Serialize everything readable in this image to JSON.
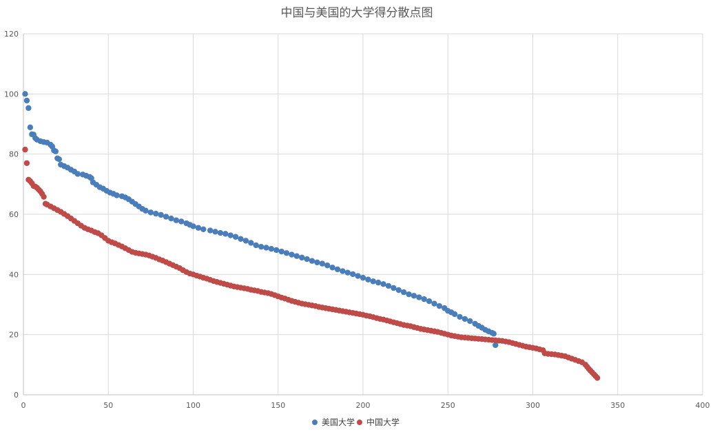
{
  "chart_data": {
    "type": "scatter",
    "title": "中国与美国的大学得分散点图",
    "xlim": [
      0,
      400
    ],
    "ylim": [
      0,
      120
    ],
    "x_ticks": [
      0,
      50,
      100,
      150,
      200,
      250,
      300,
      350,
      400
    ],
    "y_ticks": [
      0,
      20,
      40,
      60,
      80,
      100,
      120
    ],
    "grid": true,
    "legend_position": "bottom",
    "series": [
      {
        "name": "美国大学",
        "color": "#4a7ebb",
        "points": [
          [
            1,
            100
          ],
          [
            2,
            97.8
          ],
          [
            3,
            95.3
          ],
          [
            4,
            88.9
          ],
          [
            5,
            86.6
          ],
          [
            6,
            86.5
          ],
          [
            7,
            85.3
          ],
          [
            8,
            84.8
          ],
          [
            10,
            84.3
          ],
          [
            12,
            84
          ],
          [
            14,
            83.8
          ],
          [
            16,
            83.1
          ],
          [
            17,
            82.5
          ],
          [
            18,
            81.2
          ],
          [
            19,
            80.9
          ],
          [
            20,
            78.6
          ],
          [
            21,
            78.3
          ],
          [
            22,
            76.5
          ],
          [
            24,
            76
          ],
          [
            26,
            75.5
          ],
          [
            28,
            74.8
          ],
          [
            30,
            74.2
          ],
          [
            32,
            73.4
          ],
          [
            35,
            73.2
          ],
          [
            37,
            72.8
          ],
          [
            39,
            72.4
          ],
          [
            40,
            72
          ],
          [
            41,
            70.6
          ],
          [
            43,
            69.8
          ],
          [
            45,
            69
          ],
          [
            47,
            68.5
          ],
          [
            49,
            67.8
          ],
          [
            51,
            67.2
          ],
          [
            53,
            66.8
          ],
          [
            55,
            66.3
          ],
          [
            58,
            66
          ],
          [
            60,
            65.6
          ],
          [
            62,
            65
          ],
          [
            64,
            64.2
          ],
          [
            66,
            63.4
          ],
          [
            68,
            62.6
          ],
          [
            70,
            61.8
          ],
          [
            72,
            61.2
          ],
          [
            75,
            60.6
          ],
          [
            78,
            60.2
          ],
          [
            81,
            59.8
          ],
          [
            84,
            59.2
          ],
          [
            87,
            58.6
          ],
          [
            90,
            58
          ],
          [
            93,
            57.6
          ],
          [
            96,
            57
          ],
          [
            98,
            56.5
          ],
          [
            100,
            56
          ],
          [
            103,
            55.5
          ],
          [
            106,
            55
          ],
          [
            110,
            54.6
          ],
          [
            113,
            54.2
          ],
          [
            116,
            53.8
          ],
          [
            119,
            53.5
          ],
          [
            122,
            53
          ],
          [
            125,
            52.5
          ],
          [
            128,
            51.8
          ],
          [
            131,
            51.2
          ],
          [
            134,
            50.5
          ],
          [
            137,
            49.7
          ],
          [
            140,
            49.2
          ],
          [
            143,
            48.9
          ],
          [
            146,
            48.5
          ],
          [
            149,
            48.1
          ],
          [
            152,
            47.6
          ],
          [
            155,
            47.1
          ],
          [
            158,
            46.6
          ],
          [
            161,
            46.1
          ],
          [
            164,
            45.6
          ],
          [
            167,
            45.1
          ],
          [
            170,
            44.5
          ],
          [
            173,
            44
          ],
          [
            176,
            43.6
          ],
          [
            179,
            43
          ],
          [
            182,
            42.3
          ],
          [
            185,
            41.7
          ],
          [
            188,
            41.1
          ],
          [
            191,
            40.6
          ],
          [
            194,
            40.1
          ],
          [
            197,
            39.5
          ],
          [
            200,
            38.9
          ],
          [
            203,
            38.3
          ],
          [
            206,
            37.7
          ],
          [
            209,
            37.3
          ],
          [
            212,
            36.8
          ],
          [
            215,
            36.2
          ],
          [
            218,
            35.5
          ],
          [
            221,
            34.8
          ],
          [
            224,
            34.1
          ],
          [
            227,
            33.4
          ],
          [
            230,
            32.9
          ],
          [
            233,
            32.4
          ],
          [
            236,
            31.8
          ],
          [
            239,
            31.1
          ],
          [
            242,
            30.3
          ],
          [
            245,
            29.5
          ],
          [
            248,
            28.8
          ],
          [
            250,
            27.9
          ],
          [
            252,
            27.4
          ],
          [
            254,
            26.8
          ],
          [
            257,
            25.9
          ],
          [
            260,
            25.2
          ],
          [
            263,
            24.5
          ],
          [
            266,
            23.6
          ],
          [
            268,
            22.9
          ],
          [
            270,
            22.3
          ],
          [
            272,
            21.6
          ],
          [
            274,
            21.1
          ],
          [
            276,
            20.6
          ],
          [
            277,
            20.3
          ],
          [
            278,
            16.5
          ]
        ]
      },
      {
        "name": "中国大学",
        "color": "#be4b48",
        "points": [
          [
            1,
            81.5
          ],
          [
            2,
            77
          ],
          [
            3,
            71.5
          ],
          [
            4,
            71
          ],
          [
            5,
            70.3
          ],
          [
            6,
            69.4
          ],
          [
            7,
            69.2
          ],
          [
            8,
            68.8
          ],
          [
            9,
            68.2
          ],
          [
            10,
            67.6
          ],
          [
            11,
            66.8
          ],
          [
            12,
            65.8
          ],
          [
            13,
            63.5
          ],
          [
            14,
            63.2
          ],
          [
            16,
            62.6
          ],
          [
            18,
            62
          ],
          [
            20,
            61.4
          ],
          [
            22,
            60.8
          ],
          [
            24,
            60.1
          ],
          [
            26,
            59.4
          ],
          [
            28,
            58.6
          ],
          [
            30,
            57.8
          ],
          [
            32,
            57
          ],
          [
            34,
            56.2
          ],
          [
            36,
            55.5
          ],
          [
            38,
            55
          ],
          [
            40,
            54.6
          ],
          [
            42,
            54.1
          ],
          [
            44,
            53.7
          ],
          [
            46,
            53
          ],
          [
            48,
            52.1
          ],
          [
            50,
            51.2
          ],
          [
            52,
            50.7
          ],
          [
            54,
            50.3
          ],
          [
            56,
            49.8
          ],
          [
            58,
            49.3
          ],
          [
            60,
            48.7
          ],
          [
            62,
            48.1
          ],
          [
            64,
            47.5
          ],
          [
            66,
            47.2
          ],
          [
            68,
            47
          ],
          [
            70,
            46.8
          ],
          [
            72,
            46.6
          ],
          [
            74,
            46.3
          ],
          [
            76,
            45.9
          ],
          [
            78,
            45.5
          ],
          [
            80,
            45
          ],
          [
            82,
            44.6
          ],
          [
            84,
            44.1
          ],
          [
            86,
            43.6
          ],
          [
            88,
            43.1
          ],
          [
            90,
            42.6
          ],
          [
            92,
            42.1
          ],
          [
            94,
            41.4
          ],
          [
            96,
            40.8
          ],
          [
            98,
            40.3
          ],
          [
            100,
            40
          ],
          [
            102,
            39.6
          ],
          [
            104,
            39.3
          ],
          [
            106,
            38.9
          ],
          [
            108,
            38.6
          ],
          [
            110,
            38.2
          ],
          [
            112,
            37.8
          ],
          [
            114,
            37.5
          ],
          [
            116,
            37.2
          ],
          [
            118,
            36.9
          ],
          [
            120,
            36.6
          ],
          [
            122,
            36.3
          ],
          [
            124,
            36
          ],
          [
            126,
            35.8
          ],
          [
            128,
            35.6
          ],
          [
            130,
            35.4
          ],
          [
            132,
            35.2
          ],
          [
            134,
            34.9
          ],
          [
            136,
            34.7
          ],
          [
            138,
            34.5
          ],
          [
            140,
            34.2
          ],
          [
            142,
            34
          ],
          [
            144,
            33.8
          ],
          [
            146,
            33.5
          ],
          [
            148,
            33.1
          ],
          [
            150,
            32.7
          ],
          [
            152,
            32.3
          ],
          [
            154,
            32
          ],
          [
            156,
            31.6
          ],
          [
            158,
            31.2
          ],
          [
            160,
            30.9
          ],
          [
            162,
            30.6
          ],
          [
            164,
            30.3
          ],
          [
            166,
            30.1
          ],
          [
            168,
            29.9
          ],
          [
            170,
            29.7
          ],
          [
            172,
            29.5
          ],
          [
            174,
            29.2
          ],
          [
            176,
            29
          ],
          [
            178,
            28.8
          ],
          [
            180,
            28.6
          ],
          [
            182,
            28.4
          ],
          [
            184,
            28.2
          ],
          [
            186,
            28
          ],
          [
            188,
            27.8
          ],
          [
            190,
            27.6
          ],
          [
            192,
            27.4
          ],
          [
            194,
            27.2
          ],
          [
            196,
            27
          ],
          [
            198,
            26.8
          ],
          [
            200,
            26.6
          ],
          [
            202,
            26.3
          ],
          [
            204,
            26.1
          ],
          [
            206,
            25.8
          ],
          [
            208,
            25.5
          ],
          [
            210,
            25.2
          ],
          [
            212,
            25
          ],
          [
            214,
            24.7
          ],
          [
            216,
            24.4
          ],
          [
            218,
            24.1
          ],
          [
            220,
            23.8
          ],
          [
            222,
            23.5
          ],
          [
            224,
            23.2
          ],
          [
            226,
            23
          ],
          [
            228,
            22.8
          ],
          [
            230,
            22.5
          ],
          [
            232,
            22.2
          ],
          [
            234,
            21.9
          ],
          [
            236,
            21.7
          ],
          [
            238,
            21.5
          ],
          [
            240,
            21.3
          ],
          [
            242,
            21.1
          ],
          [
            244,
            20.9
          ],
          [
            246,
            20.6
          ],
          [
            248,
            20.3
          ],
          [
            250,
            20
          ],
          [
            252,
            19.7
          ],
          [
            254,
            19.5
          ],
          [
            256,
            19.3
          ],
          [
            258,
            19.1
          ],
          [
            260,
            19
          ],
          [
            262,
            18.9
          ],
          [
            264,
            18.8
          ],
          [
            266,
            18.7
          ],
          [
            268,
            18.6
          ],
          [
            270,
            18.5
          ],
          [
            272,
            18.4
          ],
          [
            274,
            18.3
          ],
          [
            276,
            18.2
          ],
          [
            278,
            18.1
          ],
          [
            280,
            18
          ],
          [
            282,
            17.9
          ],
          [
            284,
            17.7
          ],
          [
            286,
            17.5
          ],
          [
            288,
            17.2
          ],
          [
            290,
            16.9
          ],
          [
            292,
            16.6
          ],
          [
            294,
            16.3
          ],
          [
            296,
            16
          ],
          [
            298,
            15.8
          ],
          [
            300,
            15.6
          ],
          [
            302,
            15.4
          ],
          [
            304,
            15.1
          ],
          [
            306,
            14.8
          ],
          [
            307,
            13.8
          ],
          [
            309,
            13.6
          ],
          [
            311,
            13.5
          ],
          [
            313,
            13.4
          ],
          [
            315,
            13.2
          ],
          [
            317,
            13
          ],
          [
            319,
            12.8
          ],
          [
            321,
            12.4
          ],
          [
            323,
            12
          ],
          [
            325,
            11.6
          ],
          [
            327,
            11.2
          ],
          [
            329,
            10.8
          ],
          [
            331,
            10
          ],
          [
            332,
            9.3
          ],
          [
            333,
            8.6
          ],
          [
            334,
            8
          ],
          [
            335,
            7.4
          ],
          [
            336,
            6.8
          ],
          [
            337,
            6.2
          ],
          [
            338,
            5.6
          ]
        ]
      }
    ]
  }
}
